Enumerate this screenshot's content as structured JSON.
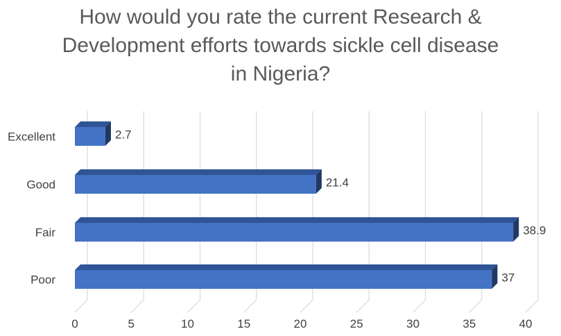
{
  "chart_data": {
    "type": "bar",
    "orientation": "horizontal",
    "style": "3d",
    "title_lines": [
      "How would you rate the current Research &",
      "Development efforts towards sickle cell disease",
      "in Nigeria?"
    ],
    "categories": [
      "Excellent",
      "Good",
      "Fair",
      "Poor"
    ],
    "values": [
      2.7,
      21.4,
      38.9,
      37
    ],
    "data_labels": [
      "2.7",
      "21.4",
      "38.9",
      "37"
    ],
    "xlim": [
      0,
      40
    ],
    "x_ticks": [
      0,
      5,
      10,
      15,
      20,
      25,
      30,
      35,
      40
    ],
    "grid": true,
    "legend": "none",
    "colors": {
      "bar_front": "#4472C4",
      "bar_top": "#2F5597",
      "bar_side": "#203864",
      "grid": "#D9D9D9",
      "title": "#595959",
      "label": "#404040"
    }
  }
}
